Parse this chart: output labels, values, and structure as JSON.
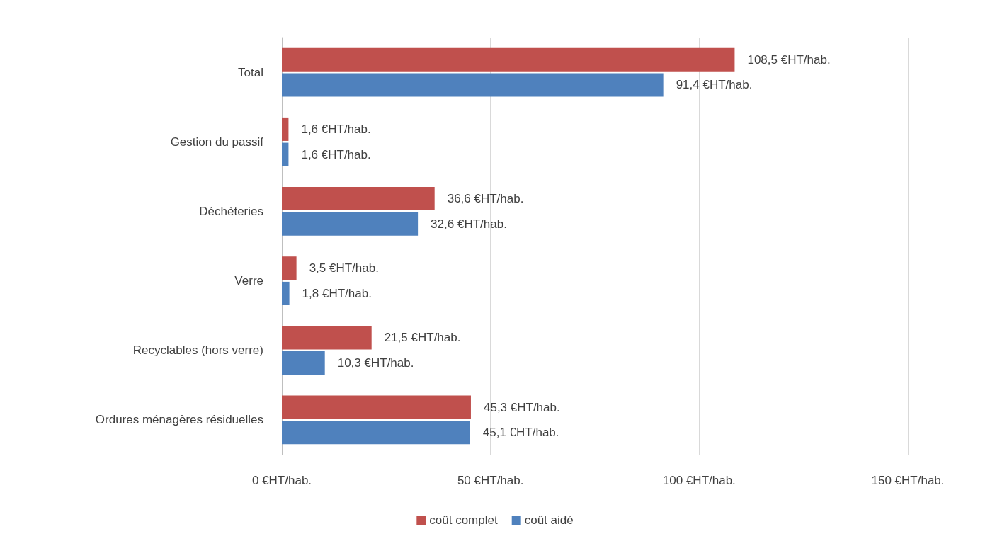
{
  "chart_data": {
    "type": "bar",
    "orientation": "horizontal",
    "categories": [
      "Total",
      "Gestion du passif",
      "Déchèteries",
      "Verre",
      "Recyclables (hors verre)",
      "Ordures ménagères résiduelles"
    ],
    "series": [
      {
        "name": "coût complet",
        "color": "#c0504d",
        "values": [
          108.5,
          1.6,
          36.6,
          3.5,
          21.5,
          45.3
        ],
        "value_labels": [
          "108,5 €HT/hab.",
          "1,6 €HT/hab.",
          "36,6 €HT/hab.",
          "3,5 €HT/hab.",
          "21,5 €HT/hab.",
          "45,3 €HT/hab."
        ]
      },
      {
        "name": "coût aidé",
        "color": "#4f81bd",
        "values": [
          91.4,
          1.6,
          32.6,
          1.8,
          10.3,
          45.1
        ],
        "value_labels": [
          "91,4 €HT/hab.",
          "1,6 €HT/hab.",
          "32,6 €HT/hab.",
          "1,8 €HT/hab.",
          "10,3 €HT/hab.",
          "45,1 €HT/hab."
        ]
      }
    ],
    "xlim": [
      0,
      150
    ],
    "xticks": [
      {
        "value": 0,
        "label": "0 €HT/hab."
      },
      {
        "value": 50,
        "label": "50 €HT/hab."
      },
      {
        "value": 100,
        "label": "100 €HT/hab."
      },
      {
        "value": 150,
        "label": "150 €HT/hab."
      }
    ],
    "grid": "x",
    "legend": "bottom"
  }
}
